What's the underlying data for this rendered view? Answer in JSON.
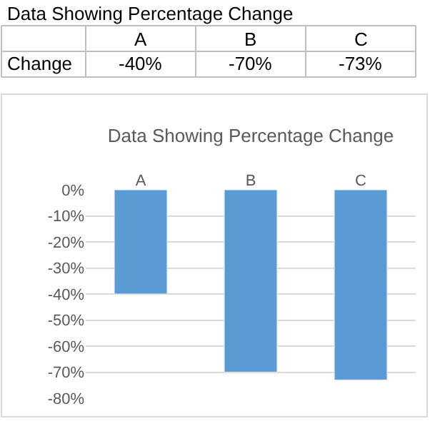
{
  "chart_data": {
    "type": "bar",
    "title": "Data Showing Percentage Change",
    "annotations": [
      "Data Showing Percentage Change"
    ],
    "categories": [
      "A",
      "B",
      "C"
    ],
    "series": [
      {
        "name": "Change",
        "color": "#5b9bd5",
        "values": [
          -40,
          -70,
          -73
        ]
      }
    ],
    "value_labels": [
      "-40%",
      "-70%",
      "-73%"
    ],
    "ylim": [
      -80,
      0
    ],
    "yticks": [
      {
        "value": 0,
        "label": "0%"
      },
      {
        "value": -10,
        "label": "-10%"
      },
      {
        "value": -20,
        "label": "-20%"
      },
      {
        "value": -30,
        "label": "-30%"
      },
      {
        "value": -40,
        "label": "-40%"
      },
      {
        "value": -50,
        "label": "-50%"
      },
      {
        "value": -60,
        "label": "-60%"
      },
      {
        "value": -70,
        "label": "-70%"
      },
      {
        "value": -80,
        "label": "-80%"
      }
    ],
    "grid": "y",
    "legend": false
  }
}
